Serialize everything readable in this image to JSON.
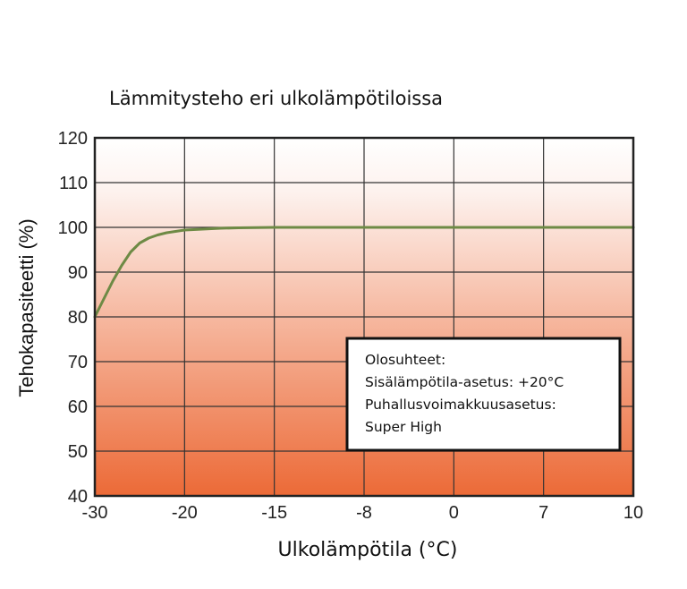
{
  "chart_data": {
    "type": "line",
    "title": "Lämmitysteho eri ulkolämpötiloissa",
    "xlabel": "Ulkolämpötila (°C)",
    "ylabel": "Tehokapasiteetti (%)",
    "x_ticks": [
      "-30",
      "-20",
      "-15",
      "-8",
      "0",
      "7",
      "10"
    ],
    "y_ticks": [
      40,
      50,
      60,
      70,
      80,
      90,
      100,
      110,
      120
    ],
    "ylim": [
      40,
      120
    ],
    "grid": true,
    "background": "gradient white (top) to orange (bottom)",
    "series": [
      {
        "color": "#6e8a45",
        "points": [
          [
            "-30",
            80
          ],
          [
            "-29",
            84
          ],
          [
            "-28",
            88
          ],
          [
            "-27",
            91.5
          ],
          [
            "-26",
            94.5
          ],
          [
            "-25",
            96.5
          ],
          [
            "-24",
            97.6
          ],
          [
            "-23",
            98.3
          ],
          [
            "-22",
            98.8
          ],
          [
            "-21",
            99.1
          ],
          [
            "-20",
            99.4
          ],
          [
            "-19",
            99.6
          ],
          [
            "-18",
            99.8
          ],
          [
            "-17",
            99.9
          ],
          [
            "-15",
            100
          ],
          [
            "-8",
            100
          ],
          [
            "0",
            100
          ],
          [
            "7",
            100
          ],
          [
            "10",
            100
          ]
        ]
      }
    ],
    "annotation": {
      "lines": [
        "Olosuhteet:",
        "Sisälämpötila-asetus: +20°C",
        "Puhallusvoimakkuusasetus:",
        "Super High"
      ]
    }
  },
  "colors": {
    "gradient_top": "#ffffff",
    "gradient_bottom": "#ec6a37",
    "line": "#6e8a45",
    "grid": "#333333"
  }
}
